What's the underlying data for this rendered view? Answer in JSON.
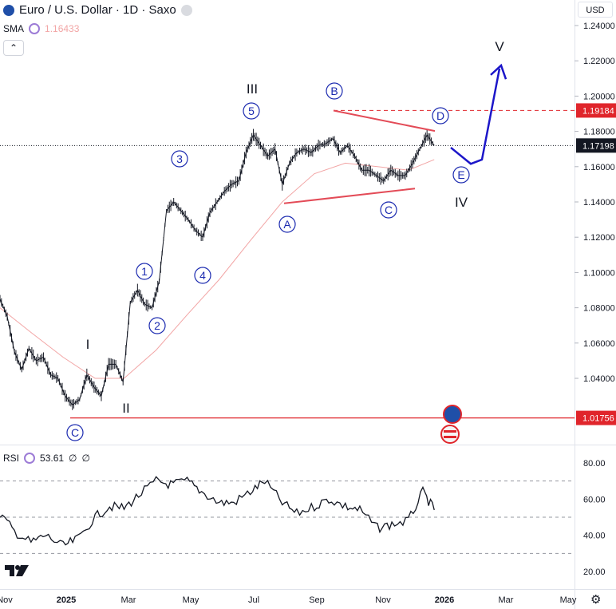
{
  "header": {
    "symbol_title": "Euro / U.S. Dollar · 1D · Saxo",
    "sma_label": "SMA",
    "sma_value": "1.16433",
    "collapse_glyph": "⌃",
    "currency_button": "USD",
    "rsi_label": "RSI",
    "rsi_value": "53.61",
    "rsi_extra_1": "∅",
    "rsi_extra_2": "∅"
  },
  "colors": {
    "bull_bear_bars": "#131722",
    "sma_line": "#f2a5a5",
    "support_line": "#e0252b",
    "triangle_lines": "#e34b57",
    "projection": "#1c16c9",
    "wave_label": "#1c2bb0",
    "last_price_box": "#131722",
    "resistance_box": "#e0252b"
  },
  "chart_data": [
    {
      "type": "line",
      "title": "Euro / U.S. Dollar · 1D · Saxo",
      "series": [
        {
          "name": "EUR/USD",
          "x": [
            "2024-11-01",
            "2024-11-08",
            "2024-11-15",
            "2024-11-22",
            "2024-11-29",
            "2024-12-06",
            "2024-12-13",
            "2024-12-20",
            "2024-12-27",
            "2025-01-03",
            "2025-01-10",
            "2025-01-17",
            "2025-01-24",
            "2025-01-31",
            "2025-02-07",
            "2025-02-14",
            "2025-02-21",
            "2025-02-28",
            "2025-03-07",
            "2025-03-14",
            "2025-03-21",
            "2025-03-28",
            "2025-04-04",
            "2025-04-11",
            "2025-04-18",
            "2025-04-25",
            "2025-05-02",
            "2025-05-09",
            "2025-05-16",
            "2025-05-23",
            "2025-05-30",
            "2025-06-06",
            "2025-06-13",
            "2025-06-20",
            "2025-06-27",
            "2025-07-04",
            "2025-07-11",
            "2025-07-18",
            "2025-07-25",
            "2025-08-01",
            "2025-08-08",
            "2025-08-15",
            "2025-08-22",
            "2025-08-29",
            "2025-09-05",
            "2025-09-12",
            "2025-09-19",
            "2025-09-26",
            "2025-10-03",
            "2025-10-10",
            "2025-10-17",
            "2025-10-24",
            "2025-10-31",
            "2025-11-07",
            "2025-11-14",
            "2025-11-21",
            "2025-11-28",
            "2025-12-05",
            "2025-12-12",
            "2025-12-19",
            "2025-12-26"
          ],
          "values": [
            1.085,
            1.075,
            1.055,
            1.045,
            1.057,
            1.05,
            1.052,
            1.042,
            1.04,
            1.03,
            1.025,
            1.028,
            1.042,
            1.035,
            1.03,
            1.048,
            1.048,
            1.038,
            1.083,
            1.09,
            1.082,
            1.08,
            1.095,
            1.135,
            1.14,
            1.135,
            1.13,
            1.124,
            1.12,
            1.134,
            1.14,
            1.146,
            1.15,
            1.152,
            1.168,
            1.178,
            1.172,
            1.166,
            1.17,
            1.15,
            1.162,
            1.168,
            1.17,
            1.168,
            1.172,
            1.173,
            1.176,
            1.168,
            1.172,
            1.166,
            1.158,
            1.158,
            1.155,
            1.152,
            1.158,
            1.155,
            1.155,
            1.162,
            1.17,
            1.178,
            1.172
          ]
        },
        {
          "name": "SMA",
          "x": [
            "2024-11-01",
            "2024-12-01",
            "2025-01-01",
            "2025-02-01",
            "2025-03-01",
            "2025-04-01",
            "2025-05-01",
            "2025-06-01",
            "2025-07-01",
            "2025-08-01",
            "2025-09-01",
            "2025-10-01",
            "2025-11-01",
            "2025-12-01",
            "2025-12-26"
          ],
          "values": [
            1.08,
            1.066,
            1.052,
            1.04,
            1.04,
            1.056,
            1.076,
            1.096,
            1.118,
            1.14,
            1.156,
            1.162,
            1.16,
            1.158,
            1.164
          ]
        }
      ],
      "price_scale_ticks": [
        "1.24000",
        "1.22000",
        "1.20000",
        "1.18000",
        "1.16000",
        "1.14000",
        "1.12000",
        "1.10000",
        "1.08000",
        "1.06000",
        "1.04000"
      ],
      "price_labels": [
        {
          "value": "1.19184",
          "kind": "resistance"
        },
        {
          "value": "1.17198",
          "kind": "last"
        },
        {
          "value": "1.01756",
          "kind": "support"
        }
      ],
      "time_axis_labels": [
        "Nov",
        "2025",
        "Mar",
        "May",
        "Jul",
        "Sep",
        "Nov",
        "2026",
        "Mar",
        "May"
      ],
      "wave_labels": {
        "circled": [
          "1",
          "2",
          "3",
          "4",
          "5",
          "A",
          "B",
          "C",
          "D",
          "E",
          "C"
        ],
        "plain": [
          "I",
          "II",
          "III",
          "IV",
          "V"
        ]
      },
      "ylim": [
        1.015,
        1.245
      ]
    },
    {
      "type": "line",
      "title": "RSI",
      "series": [
        {
          "name": "RSI",
          "x": [
            "2024-11-01",
            "2024-11-15",
            "2024-12-01",
            "2024-12-15",
            "2025-01-01",
            "2025-01-15",
            "2025-02-01",
            "2025-02-15",
            "2025-03-01",
            "2025-03-15",
            "2025-04-01",
            "2025-04-15",
            "2025-05-01",
            "2025-05-15",
            "2025-06-01",
            "2025-06-15",
            "2025-07-01",
            "2025-07-15",
            "2025-08-01",
            "2025-08-15",
            "2025-09-01",
            "2025-09-15",
            "2025-10-01",
            "2025-10-15",
            "2025-11-01",
            "2025-11-15",
            "2025-12-01",
            "2025-12-15",
            "2025-12-26"
          ],
          "values": [
            52,
            42,
            36,
            40,
            34,
            38,
            50,
            56,
            55,
            62,
            70,
            68,
            70,
            64,
            58,
            58,
            64,
            70,
            58,
            52,
            56,
            60,
            56,
            54,
            44,
            46,
            48,
            64,
            54
          ]
        }
      ],
      "ticks": [
        "80.00",
        "60.00",
        "40.00",
        "20.00"
      ],
      "levels": [
        70,
        50,
        30
      ],
      "ylim": [
        15,
        85
      ]
    }
  ]
}
